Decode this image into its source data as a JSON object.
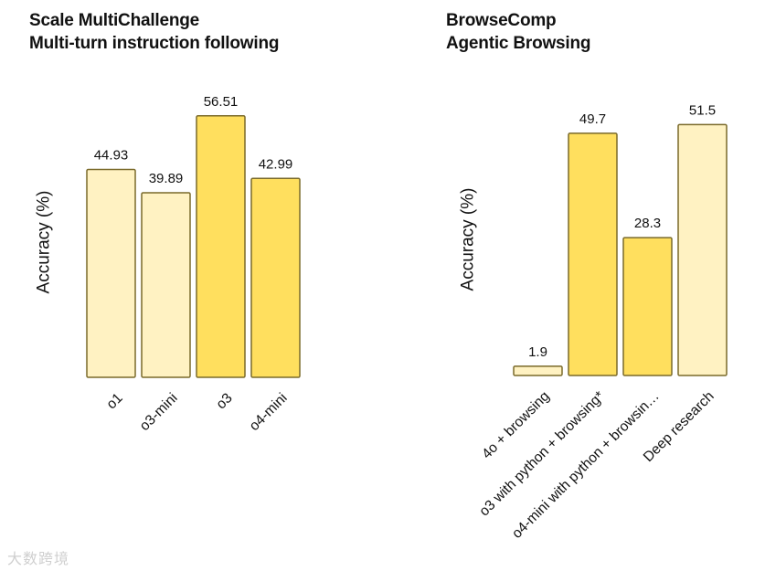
{
  "watermark": "大数跨境",
  "chart_data": [
    {
      "type": "bar",
      "title": [
        "Scale MultiChallenge",
        "Multi-turn instruction following"
      ],
      "ylabel": "Accuracy (%)",
      "ylim": [
        0,
        62
      ],
      "grid": false,
      "categories": [
        "o1",
        "o3-mini",
        "o3",
        "o4-mini"
      ],
      "values": [
        44.93,
        39.89,
        56.51,
        42.99
      ],
      "value_labels": [
        "44.93",
        "39.89",
        "56.51",
        "42.99"
      ],
      "colors": [
        "#FFF2C2",
        "#FFF2C2",
        "#FFDF5E",
        "#FFDF5E"
      ],
      "border_color": "#7A6A2A"
    },
    {
      "type": "bar",
      "title": [
        "BrowseComp",
        "Agentic Browsing"
      ],
      "ylabel": "Accuracy (%)",
      "ylim": [
        0,
        57
      ],
      "grid": false,
      "categories": [
        "4o + browsing",
        "o3 with python + browsing*",
        "o4-mini with python + browsin…",
        "Deep research"
      ],
      "values": [
        1.9,
        49.7,
        28.3,
        51.5
      ],
      "value_labels": [
        "1.9",
        "49.7",
        "28.3",
        "51.5"
      ],
      "colors": [
        "#FFF2C2",
        "#FFDF5E",
        "#FFDF5E",
        "#FFF2C2"
      ],
      "border_color": "#7A6A2A"
    }
  ]
}
